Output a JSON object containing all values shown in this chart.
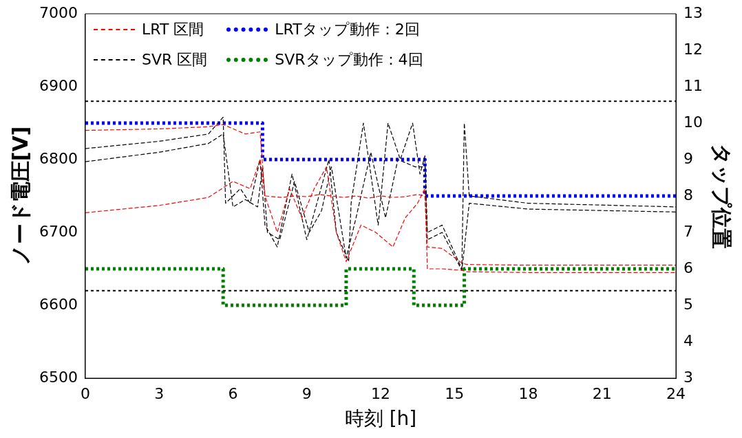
{
  "chart_data": {
    "type": "line",
    "xlabel": "時刻 [h]",
    "ylabel": "ノード電圧[V]",
    "y2label": "タップ位置",
    "xlim": [
      0,
      24
    ],
    "xticks": [
      0,
      3,
      6,
      9,
      12,
      15,
      18,
      21,
      24
    ],
    "ylim": [
      6500,
      7000
    ],
    "yticks": [
      6500,
      6600,
      6700,
      6800,
      6900,
      7000
    ],
    "y2lim": [
      3,
      13
    ],
    "y2ticks": [
      3,
      4,
      5,
      6,
      7,
      8,
      9,
      10,
      11,
      12,
      13
    ],
    "grid": false,
    "legend": "top left",
    "marker": "none",
    "series": [
      {
        "name": "LRT 区間",
        "color": "#ff0000",
        "line_style": "dashed",
        "x": [
          0,
          3,
          5,
          5.6,
          6.5,
          7.1,
          7.3,
          8,
          8.5,
          9,
          9.5,
          10,
          10.5,
          11,
          11.5,
          12,
          12.5,
          13,
          13.5,
          13.8,
          13.9,
          14.5,
          15.3,
          15.5,
          18,
          24
        ],
        "values": [
          6840,
          6842,
          6845,
          6848,
          6835,
          6838,
          6750,
          6748,
          6750,
          6749,
          6752,
          6750,
          6748,
          6750,
          6747,
          6750,
          6748,
          6749,
          6752,
          6750,
          6680,
          6678,
          6658,
          6656,
          6655,
          6655
        ]
      },
      {
        "color": "#ff0000",
        "line_style": "dashed",
        "x": [
          0,
          3,
          5,
          6,
          6.7,
          7.1,
          7.3,
          7.8,
          8.3,
          8.8,
          9.3,
          9.8,
          10.2,
          10.6,
          11.2,
          11.8,
          12.5,
          13,
          13.5,
          13.8,
          13.9,
          14.5,
          15.3,
          15.5,
          18,
          24
        ],
        "values": [
          6727,
          6737,
          6748,
          6770,
          6760,
          6800,
          6750,
          6700,
          6760,
          6720,
          6760,
          6790,
          6700,
          6660,
          6710,
          6700,
          6680,
          6720,
          6740,
          6760,
          6650,
          6650,
          6648,
          6646,
          6645,
          6645
        ]
      },
      {
        "name": "SVR 区間",
        "color": "#000000",
        "line_style": "dashed",
        "x": [
          0,
          3,
          5,
          5.6,
          5.7,
          6.3,
          6.7,
          7.1,
          7.3,
          7.8,
          8.4,
          9,
          9.9,
          10.2,
          10.7,
          10.8,
          11.3,
          11.9,
          12.3,
          12.8,
          13.3,
          13.6,
          13.8,
          13.9,
          14.5,
          15.3,
          15.4,
          15.6,
          18,
          24
        ],
        "values": [
          6815,
          6825,
          6835,
          6858,
          6740,
          6760,
          6740,
          6800,
          6710,
          6680,
          6780,
          6690,
          6800,
          6700,
          6660,
          6740,
          6850,
          6710,
          6850,
          6800,
          6850,
          6780,
          6805,
          6700,
          6710,
          6650,
          6850,
          6750,
          6740,
          6735
        ]
      },
      {
        "color": "#000000",
        "line_style": "dashed",
        "x": [
          0,
          3,
          5,
          5.6,
          6,
          6.5,
          7,
          7.2,
          7.4,
          7.9,
          8.5,
          9.1,
          9.6,
          10,
          10.6,
          11,
          11.6,
          12.2,
          12.7,
          13.4,
          13.8,
          13.9,
          14.5,
          15.3,
          15.6,
          18,
          24
        ],
        "values": [
          6797,
          6810,
          6822,
          6835,
          6735,
          6745,
          6735,
          6790,
          6700,
          6690,
          6770,
          6700,
          6730,
          6790,
          6665,
          6720,
          6810,
          6720,
          6800,
          6790,
          6790,
          6690,
          6700,
          6648,
          6740,
          6732,
          6728
        ]
      },
      {
        "name": "LRTタップ動作：2回",
        "type": "step",
        "axis": "y2",
        "color": "#0000ff",
        "line_style": "dotted",
        "x": [
          0,
          7.2,
          13.8,
          24
        ],
        "values": [
          10,
          9,
          8,
          8
        ]
      },
      {
        "name": "SVRタップ動作：4回",
        "type": "step",
        "axis": "y2",
        "color": "#008000",
        "line_style": "dotted",
        "x": [
          0,
          5.6,
          10.6,
          13.35,
          15.4,
          24
        ],
        "values": [
          6,
          5,
          6,
          5,
          6,
          6
        ]
      }
    ],
    "ref_lines": [
      {
        "axis": "y",
        "value": 6880,
        "color": "#000000",
        "line_style": "dotted"
      },
      {
        "axis": "y",
        "value": 6620,
        "color": "#000000",
        "line_style": "dotted"
      }
    ]
  }
}
